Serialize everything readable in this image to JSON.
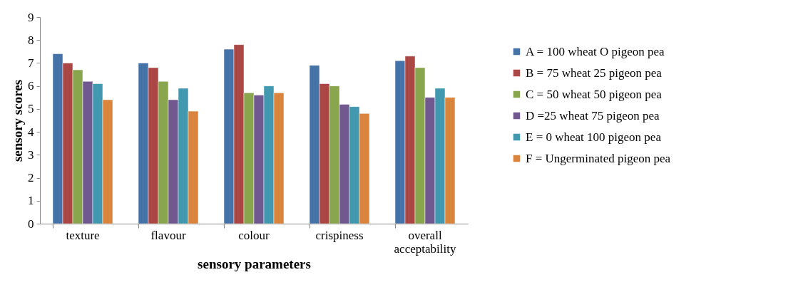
{
  "chart_data": {
    "type": "bar",
    "xlabel": "sensory parameters",
    "ylabel": "sensory scores",
    "categories": [
      "texture",
      "flavour",
      "colour",
      "crispiness",
      "overall acceptability"
    ],
    "series": [
      {
        "name": "A = 100 wheat O pigeon pea",
        "color": "#4572a7",
        "values": [
          7.4,
          7.0,
          7.6,
          6.9,
          7.1
        ]
      },
      {
        "name": "B = 75 wheat 25 pigeon pea",
        "color": "#aa4643",
        "values": [
          7.0,
          6.8,
          7.8,
          6.1,
          7.3
        ]
      },
      {
        "name": "C = 50 wheat 50 pigeon pea",
        "color": "#89a54e",
        "values": [
          6.7,
          6.2,
          5.7,
          6.0,
          6.8
        ]
      },
      {
        "name": "D =25 wheat 75 pigeon pea",
        "color": "#71588f",
        "values": [
          6.2,
          5.4,
          5.6,
          5.2,
          5.5
        ]
      },
      {
        "name": "E = 0 wheat 100 pigeon pea",
        "color": "#4198af",
        "values": [
          6.1,
          5.9,
          6.0,
          5.1,
          5.9
        ]
      },
      {
        "name": "F = Ungerminated pigeon pea",
        "color": "#db843d",
        "values": [
          5.4,
          4.9,
          5.7,
          4.8,
          5.5
        ]
      }
    ],
    "ylim": [
      0,
      9
    ],
    "yticks": [
      0,
      1,
      2,
      3,
      4,
      5,
      6,
      7,
      8,
      9
    ],
    "grid": false,
    "legend": "right"
  }
}
